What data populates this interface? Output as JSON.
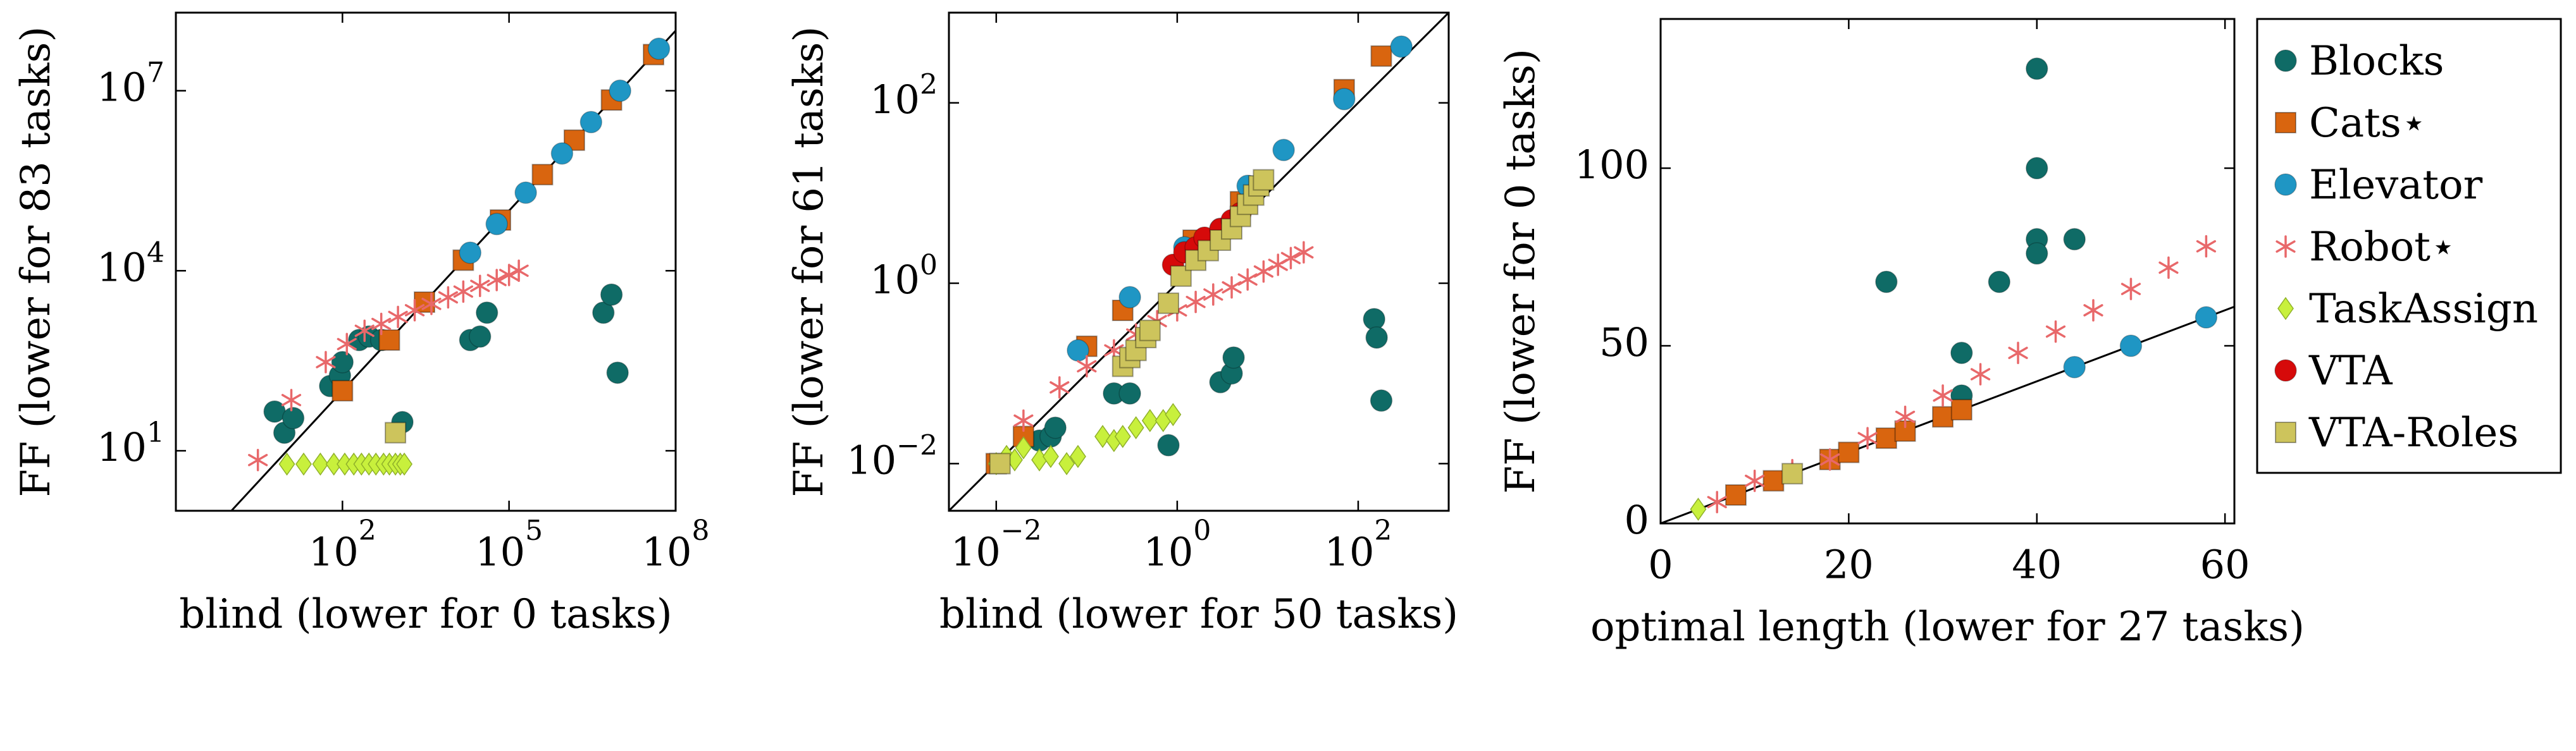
{
  "chart_data": [
    {
      "type": "scatter",
      "xscale": "log",
      "yscale": "log",
      "xlim": [
        0.1,
        100000000
      ],
      "ylim": [
        1,
        200000000
      ],
      "diagonal": true,
      "xlabel": "blind (lower for 0 tasks)",
      "ylabel": "FF (lower for 83 tasks)",
      "xticks": [
        {
          "value": 100,
          "label": "10^2"
        },
        {
          "value": 100000,
          "label": "10^5"
        },
        {
          "value": 100000000,
          "label": "10^8"
        }
      ],
      "yticks": [
        {
          "value": 10,
          "label": "10^1"
        },
        {
          "value": 10000,
          "label": "10^4"
        },
        {
          "value": 10000000,
          "label": "10^7"
        }
      ],
      "series": [
        {
          "name": "Blocks",
          "points": [
            [
              6,
              45
            ],
            [
              9,
              20
            ],
            [
              13,
              35
            ],
            [
              60,
              120
            ],
            [
              90,
              180
            ],
            [
              100,
              300
            ],
            [
              200,
              700
            ],
            [
              300,
              800
            ],
            [
              500,
              700
            ],
            [
              1200,
              30
            ],
            [
              20000,
              700
            ],
            [
              30000,
              800
            ],
            [
              40000,
              2000
            ],
            [
              5000000,
              2000
            ],
            [
              7000000,
              4000
            ],
            [
              9000000,
              200
            ]
          ]
        },
        {
          "name": "Cats",
          "points": [
            [
              100,
              100
            ],
            [
              700,
              700
            ],
            [
              3000,
              3000
            ],
            [
              15000,
              15000
            ],
            [
              70000,
              70000
            ],
            [
              400000,
              400000
            ],
            [
              1500000,
              1500000
            ],
            [
              7000000,
              7000000
            ],
            [
              40000000,
              40000000
            ]
          ]
        },
        {
          "name": "Elevator",
          "points": [
            [
              20000,
              20000
            ],
            [
              60000,
              60000
            ],
            [
              200000,
              200000
            ],
            [
              900000,
              900000
            ],
            [
              3000000,
              3000000
            ],
            [
              10000000,
              10000000
            ],
            [
              50000000,
              50000000
            ]
          ]
        },
        {
          "name": "Robot",
          "points": [
            [
              3,
              7
            ],
            [
              12,
              70
            ],
            [
              50,
              300
            ],
            [
              120,
              600
            ],
            [
              250,
              1000
            ],
            [
              500,
              1300
            ],
            [
              1000,
              1700
            ],
            [
              2000,
              2200
            ],
            [
              4000,
              2800
            ],
            [
              8000,
              3600
            ],
            [
              15000,
              4500
            ],
            [
              30000,
              5600
            ],
            [
              60000,
              7000
            ],
            [
              100000,
              8500
            ],
            [
              150000,
              10000
            ]
          ]
        },
        {
          "name": "TaskAssign",
          "points": [
            [
              10,
              6
            ],
            [
              20,
              6
            ],
            [
              40,
              6
            ],
            [
              70,
              6
            ],
            [
              110,
              6
            ],
            [
              160,
              6
            ],
            [
              220,
              6
            ],
            [
              300,
              6
            ],
            [
              400,
              6
            ],
            [
              550,
              6
            ],
            [
              700,
              6
            ],
            [
              900,
              6
            ],
            [
              1100,
              6
            ],
            [
              1300,
              6
            ]
          ]
        },
        {
          "name": "VTA-Roles",
          "points": [
            [
              900,
              20
            ]
          ]
        }
      ]
    },
    {
      "type": "scatter",
      "xscale": "log",
      "yscale": "log",
      "xlim": [
        0.003,
        1000
      ],
      "ylim": [
        0.003,
        1000
      ],
      "diagonal": true,
      "xlabel": "blind (lower for 50 tasks)",
      "ylabel": "FF (lower for 61 tasks)",
      "xticks": [
        {
          "value": 0.01,
          "label": "10^-2"
        },
        {
          "value": 1,
          "label": "10^0"
        },
        {
          "value": 100,
          "label": "10^2"
        }
      ],
      "yticks": [
        {
          "value": 0.01,
          "label": "10^-2"
        },
        {
          "value": 1,
          "label": "10^0"
        },
        {
          "value": 100,
          "label": "10^2"
        }
      ],
      "series": [
        {
          "name": "Blocks",
          "points": [
            [
              0.03,
              0.018
            ],
            [
              0.04,
              0.02
            ],
            [
              0.045,
              0.025
            ],
            [
              0.2,
              0.06
            ],
            [
              0.3,
              0.06
            ],
            [
              0.8,
              0.016
            ],
            [
              3,
              0.08
            ],
            [
              4,
              0.1
            ],
            [
              4.2,
              0.15
            ],
            [
              150,
              0.4
            ],
            [
              160,
              0.25
            ],
            [
              180,
              0.05
            ]
          ]
        },
        {
          "name": "Cats",
          "points": [
            [
              0.01,
              0.01
            ],
            [
              0.02,
              0.02
            ],
            [
              0.1,
              0.2
            ],
            [
              0.25,
              0.5
            ],
            [
              1.5,
              3
            ],
            [
              5,
              8
            ],
            [
              70,
              140
            ],
            [
              180,
              330
            ]
          ]
        },
        {
          "name": "Elevator",
          "points": [
            [
              0.08,
              0.18
            ],
            [
              0.3,
              0.7
            ],
            [
              1.2,
              2.5
            ],
            [
              3,
              4
            ],
            [
              6,
              12
            ],
            [
              15,
              30
            ],
            [
              70,
              110
            ],
            [
              300,
              420
            ]
          ]
        },
        {
          "name": "Robot",
          "points": [
            [
              0.02,
              0.03
            ],
            [
              0.05,
              0.07
            ],
            [
              0.1,
              0.12
            ],
            [
              0.2,
              0.18
            ],
            [
              0.35,
              0.27
            ],
            [
              0.6,
              0.38
            ],
            [
              1,
              0.5
            ],
            [
              1.6,
              0.62
            ],
            [
              2.5,
              0.75
            ],
            [
              4,
              0.9
            ],
            [
              6,
              1.1
            ],
            [
              9,
              1.35
            ],
            [
              13,
              1.6
            ],
            [
              18,
              1.9
            ],
            [
              25,
              2.2
            ]
          ]
        },
        {
          "name": "TaskAssign",
          "points": [
            [
              0.01,
              0.01
            ],
            [
              0.013,
              0.012
            ],
            [
              0.016,
              0.011
            ],
            [
              0.02,
              0.015
            ],
            [
              0.03,
              0.011
            ],
            [
              0.04,
              0.012
            ],
            [
              0.06,
              0.01
            ],
            [
              0.08,
              0.012
            ],
            [
              0.15,
              0.02
            ],
            [
              0.2,
              0.018
            ],
            [
              0.25,
              0.02
            ],
            [
              0.35,
              0.025
            ],
            [
              0.5,
              0.03
            ],
            [
              0.7,
              0.03
            ],
            [
              0.9,
              0.035
            ]
          ]
        },
        {
          "name": "VTA",
          "points": [
            [
              0.9,
              1.6
            ],
            [
              1.2,
              2.2
            ],
            [
              1.6,
              2.5
            ],
            [
              2,
              3.2
            ],
            [
              3,
              4
            ],
            [
              4,
              5
            ],
            [
              5,
              6
            ]
          ]
        },
        {
          "name": "VTA-Roles",
          "points": [
            [
              0.011,
              0.01
            ],
            [
              0.25,
              0.12
            ],
            [
              0.3,
              0.15
            ],
            [
              0.35,
              0.18
            ],
            [
              0.45,
              0.25
            ],
            [
              0.5,
              0.3
            ],
            [
              0.8,
              0.6
            ],
            [
              1.1,
              1.2
            ],
            [
              1.6,
              1.8
            ],
            [
              2.2,
              2.3
            ],
            [
              3,
              3
            ],
            [
              4,
              4
            ],
            [
              5,
              5.5
            ],
            [
              6,
              7.5
            ],
            [
              7,
              9.5
            ],
            [
              8,
              12
            ],
            [
              9,
              14
            ]
          ]
        }
      ]
    },
    {
      "type": "scatter",
      "xscale": "linear",
      "yscale": "linear",
      "xlim": [
        0,
        61
      ],
      "ylim": [
        0,
        142
      ],
      "diagonal": true,
      "xlabel": "optimal length (lower for 27 tasks)",
      "ylabel": "FF (lower for 0 tasks)",
      "xticks": [
        {
          "value": 0,
          "label": "0"
        },
        {
          "value": 20,
          "label": "20"
        },
        {
          "value": 40,
          "label": "40"
        },
        {
          "value": 60,
          "label": "60"
        }
      ],
      "yticks": [
        {
          "value": 0,
          "label": "0"
        },
        {
          "value": 50,
          "label": "50"
        },
        {
          "value": 100,
          "label": "100"
        }
      ],
      "series": [
        {
          "name": "Blocks",
          "points": [
            [
              24,
              68
            ],
            [
              32,
              48
            ],
            [
              32,
              36
            ],
            [
              36,
              68
            ],
            [
              40,
              128
            ],
            [
              40,
              100
            ],
            [
              40,
              80
            ],
            [
              40,
              76
            ],
            [
              44,
              80
            ]
          ]
        },
        {
          "name": "Cats",
          "points": [
            [
              8,
              8
            ],
            [
              12,
              12
            ],
            [
              18,
              18
            ],
            [
              20,
              20
            ],
            [
              24,
              24
            ],
            [
              26,
              26
            ],
            [
              30,
              30
            ],
            [
              32,
              32
            ]
          ]
        },
        {
          "name": "Elevator",
          "points": [
            [
              44,
              44
            ],
            [
              50,
              50
            ],
            [
              58,
              58
            ]
          ]
        },
        {
          "name": "Robot",
          "points": [
            [
              6,
              6
            ],
            [
              10,
              12
            ],
            [
              14,
              15
            ],
            [
              18,
              18
            ],
            [
              22,
              24
            ],
            [
              26,
              30
            ],
            [
              30,
              36
            ],
            [
              34,
              42
            ],
            [
              38,
              48
            ],
            [
              42,
              54
            ],
            [
              46,
              60
            ],
            [
              50,
              66
            ],
            [
              54,
              72
            ],
            [
              58,
              78
            ]
          ]
        },
        {
          "name": "TaskAssign",
          "points": [
            [
              4,
              4
            ]
          ]
        },
        {
          "name": "VTA-Roles",
          "points": [
            [
              14,
              14
            ]
          ]
        }
      ]
    }
  ],
  "legend": {
    "placement": "right",
    "items": [
      {
        "label": "Blocks",
        "marker": "circle",
        "color": "#0f6b66"
      },
      {
        "label": "Cats⋆",
        "marker": "square",
        "color": "#d9650f"
      },
      {
        "label": "Elevator",
        "marker": "circle",
        "color": "#1f96c4"
      },
      {
        "label": "Robot⋆",
        "marker": "star",
        "color": "#e8686a"
      },
      {
        "label": "TaskAssign",
        "marker": "diamond",
        "color": "#c8f03c"
      },
      {
        "label": "VTA",
        "marker": "circle",
        "color": "#d60a0a"
      },
      {
        "label": "VTA-Roles",
        "marker": "square",
        "color": "#cdc45c"
      }
    ]
  }
}
